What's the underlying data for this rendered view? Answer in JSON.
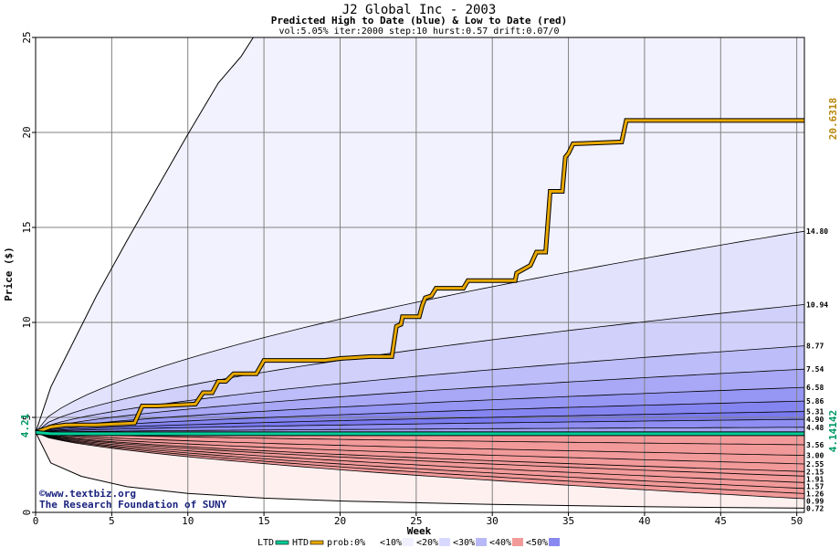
{
  "chart_data": {
    "type": "line",
    "title": "J2 Global Inc - 2003",
    "subtitle": "Predicted High to Date (blue) &  Low to Date (red)",
    "params": "vol:5.05% iter:2000 step:10 hurst:0.57 drift:0.07/0",
    "xlabel": "Week",
    "ylabel": "Price ($)",
    "xlim": [
      0,
      50.5
    ],
    "ylim": [
      0,
      25
    ],
    "x_ticks": [
      0,
      5,
      10,
      15,
      20,
      25,
      30,
      35,
      40,
      45,
      50
    ],
    "y_ticks": [
      0,
      5,
      10,
      15,
      20,
      25
    ],
    "grid": true,
    "watermark": [
      "©www.textbiz.org",
      "The Research Foundation of SUNY"
    ],
    "start_price": 4.21,
    "start_price_label": "4.21",
    "end_labels": {
      "high_to_date": "20.6318",
      "low_to_date": "4.14142"
    },
    "high_levels": [
      {
        "label": "14.80",
        "value": 14.8
      },
      {
        "label": "10.94",
        "value": 10.94
      },
      {
        "label": "8.77",
        "value": 8.77
      },
      {
        "label": "7.54",
        "value": 7.54
      },
      {
        "label": "6.58",
        "value": 6.58
      },
      {
        "label": "5.86",
        "value": 5.86
      },
      {
        "label": "5.31",
        "value": 5.31
      },
      {
        "label": "4.90",
        "value": 4.9
      },
      {
        "label": "4.48",
        "value": 4.48
      }
    ],
    "low_levels": [
      {
        "label": "3.56",
        "value": 3.56
      },
      {
        "label": "3.00",
        "value": 3.0
      },
      {
        "label": "2.55",
        "value": 2.55
      },
      {
        "label": "2.15",
        "value": 2.15
      },
      {
        "label": "1.91",
        "value": 1.91
      },
      {
        "label": "1.57",
        "value": 1.57
      },
      {
        "label": "1.26",
        "value": 1.26
      },
      {
        "label": "0.99",
        "value": 0.99
      },
      {
        "label": "0.72",
        "value": 0.72
      }
    ],
    "outer_upper_envelope": [
      [
        0,
        4.21
      ],
      [
        1,
        6.6
      ],
      [
        2,
        8.2
      ],
      [
        4,
        11.4
      ],
      [
        6,
        14.3
      ],
      [
        8,
        17.1
      ],
      [
        10,
        19.9
      ],
      [
        12,
        22.6
      ],
      [
        13.5,
        24.0
      ],
      [
        14.3,
        25.0
      ]
    ],
    "outer_lower_envelope": [
      [
        0,
        4.21
      ],
      [
        1,
        2.6
      ],
      [
        3,
        1.9
      ],
      [
        6,
        1.35
      ],
      [
        10,
        1.0
      ],
      [
        15,
        0.75
      ],
      [
        20,
        0.6
      ],
      [
        30,
        0.42
      ],
      [
        40,
        0.3
      ],
      [
        50.5,
        0.22
      ]
    ],
    "series": [
      {
        "name": "HTD",
        "color": "#e8a800",
        "points": [
          [
            0,
            4.21
          ],
          [
            1,
            4.5
          ],
          [
            2,
            4.6
          ],
          [
            4,
            4.6
          ],
          [
            6.5,
            4.7
          ],
          [
            7,
            5.6
          ],
          [
            8,
            5.6
          ],
          [
            10.5,
            5.7
          ],
          [
            11,
            6.3
          ],
          [
            11.6,
            6.3
          ],
          [
            12,
            6.9
          ],
          [
            12.5,
            6.9
          ],
          [
            13,
            7.3
          ],
          [
            14.5,
            7.3
          ],
          [
            15,
            8.0
          ],
          [
            19,
            8.0
          ],
          [
            20,
            8.1
          ],
          [
            22,
            8.2
          ],
          [
            23.4,
            8.2
          ],
          [
            23.7,
            9.8
          ],
          [
            24,
            9.9
          ],
          [
            24.1,
            10.3
          ],
          [
            25.2,
            10.3
          ],
          [
            25.4,
            10.9
          ],
          [
            25.6,
            11.3
          ],
          [
            26,
            11.4
          ],
          [
            26.3,
            11.8
          ],
          [
            28.1,
            11.8
          ],
          [
            28.4,
            12.2
          ],
          [
            31.5,
            12.2
          ],
          [
            31.6,
            12.6
          ],
          [
            32.5,
            13.0
          ],
          [
            32.9,
            13.7
          ],
          [
            33.5,
            13.7
          ],
          [
            33.8,
            16.9
          ],
          [
            34.6,
            16.9
          ],
          [
            34.8,
            18.7
          ],
          [
            35,
            18.9
          ],
          [
            35.3,
            19.4
          ],
          [
            38.5,
            19.5
          ],
          [
            38.8,
            20.63
          ],
          [
            50.5,
            20.63
          ]
        ]
      },
      {
        "name": "LTD",
        "color": "#00cc99",
        "points": [
          [
            0,
            4.21
          ],
          [
            1,
            4.14142
          ],
          [
            50.5,
            4.14142
          ]
        ]
      }
    ],
    "legend": {
      "placement": "bottom",
      "items": [
        "LTD",
        "HTD",
        "prob:0%",
        "<10%",
        "<20%",
        "<30%",
        "<40%",
        "<50%"
      ],
      "colors": [
        "#00cc99",
        "#e8a800",
        "#ffffff",
        "#f0f0ff",
        "#d8d8ff",
        "#b8b8f8",
        "#f29a9a",
        "#8888f0"
      ]
    },
    "band_colors_upper": [
      "#f2f2ff",
      "#e2e2fd",
      "#d0d0fb",
      "#bdbdf9",
      "#a8a8f6",
      "#9696f4",
      "#8585f2",
      "#7a7af0",
      "#8e8ef2",
      "#a2a2f4"
    ],
    "band_colors_lower": [
      "#fff0f0",
      "#fde2e2",
      "#fbd0d0",
      "#f9bdbd",
      "#f6a8a8",
      "#f49696",
      "#f28585",
      "#f07a7a",
      "#ee8585",
      "#f29a9a"
    ],
    "value_label_colors": {
      "high": "#b8860b",
      "low": "#009966",
      "start": "#009966"
    }
  }
}
